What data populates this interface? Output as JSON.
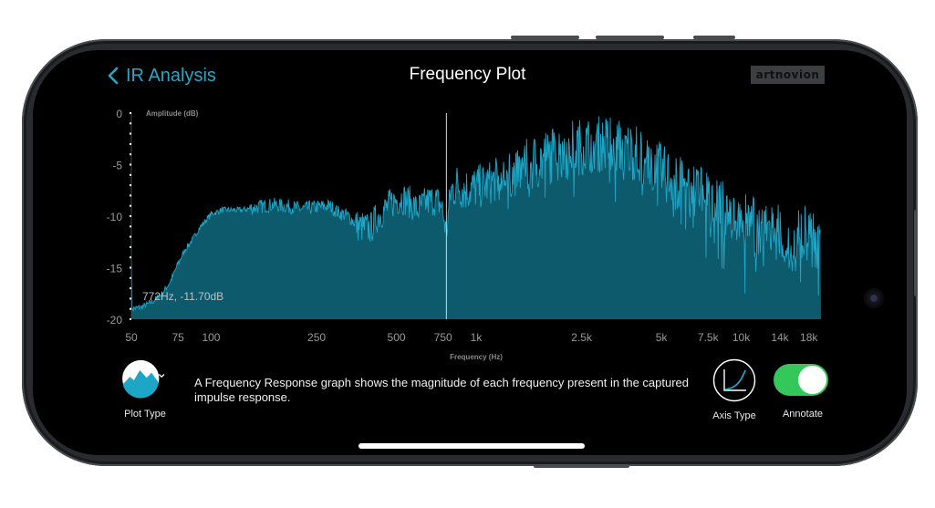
{
  "header": {
    "back_label": "IR Analysis",
    "title": "Frequency Plot",
    "brand": "artnovion"
  },
  "readout": "772Hz, -11.70dB",
  "footer": {
    "plot_type_label": "Plot Type",
    "description": "A Frequency Response graph shows the magnitude of each frequency present in the captured impulse response.",
    "axis_type_label": "Axis Type",
    "annotate_label": "Annotate",
    "annotate_on": true
  },
  "colors": {
    "accent": "#2aa6c4",
    "fill": "#0e5a6d",
    "stroke": "#1ea6c7",
    "toggle_on": "#34c759"
  },
  "chart_data": {
    "type": "area",
    "x_scale": "log",
    "ylabel": "Amplitude (dB)",
    "xlabel": "Frequency (Hz)",
    "xlim": [
      50,
      20000
    ],
    "ylim": [
      -20,
      0
    ],
    "y_ticks": [
      0,
      -5,
      -10,
      -15,
      -20
    ],
    "x_ticks": [
      {
        "value": 50,
        "label": "50"
      },
      {
        "value": 75,
        "label": "75"
      },
      {
        "value": 100,
        "label": "100"
      },
      {
        "value": 250,
        "label": "250"
      },
      {
        "value": 500,
        "label": "500"
      },
      {
        "value": 750,
        "label": "750"
      },
      {
        "value": 1000,
        "label": "1k"
      },
      {
        "value": 2500,
        "label": "2.5k"
      },
      {
        "value": 5000,
        "label": "5k"
      },
      {
        "value": 7500,
        "label": "7.5k"
      },
      {
        "value": 10000,
        "label": "10k"
      },
      {
        "value": 14000,
        "label": "14k"
      },
      {
        "value": 18000,
        "label": "18k"
      }
    ],
    "cursor_hz": 772,
    "cursor_db": -11.7,
    "envelope": [
      [
        50,
        -19.0
      ],
      [
        55,
        -18.8
      ],
      [
        60,
        -18.3
      ],
      [
        65,
        -17.6
      ],
      [
        70,
        -16.4
      ],
      [
        75,
        -14.6
      ],
      [
        80,
        -13.2
      ],
      [
        85,
        -12.3
      ],
      [
        90,
        -11.2
      ],
      [
        100,
        -9.8
      ],
      [
        110,
        -9.4
      ],
      [
        130,
        -9.4
      ],
      [
        150,
        -9.1
      ],
      [
        170,
        -8.9
      ],
      [
        190,
        -9.0
      ],
      [
        220,
        -9.3
      ],
      [
        250,
        -9.1
      ],
      [
        280,
        -9.0
      ],
      [
        300,
        -9.6
      ],
      [
        330,
        -10.0
      ],
      [
        360,
        -11.0
      ],
      [
        400,
        -11.2
      ],
      [
        420,
        -10.2
      ],
      [
        450,
        -9.4
      ],
      [
        480,
        -8.7
      ],
      [
        520,
        -8.2
      ],
      [
        560,
        -8.6
      ],
      [
        600,
        -9.4
      ],
      [
        650,
        -8.6
      ],
      [
        700,
        -8.4
      ],
      [
        740,
        -8.9
      ],
      [
        760,
        -10.6
      ],
      [
        772,
        -11.7
      ],
      [
        800,
        -7.7
      ],
      [
        850,
        -6.9
      ],
      [
        900,
        -7.4
      ],
      [
        1000,
        -7.2
      ],
      [
        1100,
        -6.9
      ],
      [
        1200,
        -6.4
      ],
      [
        1400,
        -5.9
      ],
      [
        1600,
        -5.0
      ],
      [
        1800,
        -4.5
      ],
      [
        2000,
        -3.9
      ],
      [
        2200,
        -3.5
      ],
      [
        2500,
        -3.2
      ],
      [
        2800,
        -3.0
      ],
      [
        3200,
        -3.0
      ],
      [
        3600,
        -3.4
      ],
      [
        4000,
        -3.8
      ],
      [
        4500,
        -4.6
      ],
      [
        5000,
        -5.7
      ],
      [
        5500,
        -6.4
      ],
      [
        6000,
        -7.1
      ],
      [
        7000,
        -7.8
      ],
      [
        8000,
        -8.6
      ],
      [
        9000,
        -9.3
      ],
      [
        10000,
        -10.4
      ],
      [
        11000,
        -10.8
      ],
      [
        12000,
        -11.3
      ],
      [
        14000,
        -11.6
      ],
      [
        16000,
        -11.8
      ],
      [
        18000,
        -11.5
      ],
      [
        20000,
        -12.9
      ]
    ]
  }
}
